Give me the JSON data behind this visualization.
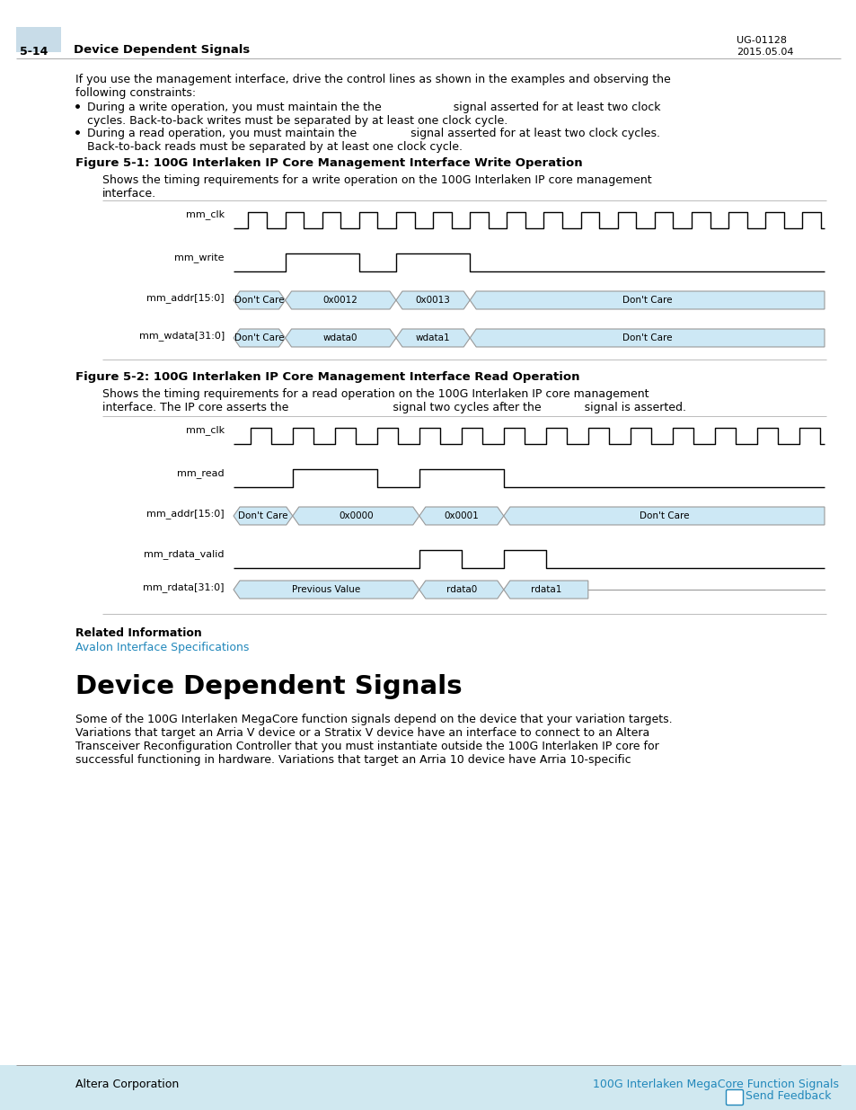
{
  "page_bg": "#ffffff",
  "header_bg": "#c8dce8",
  "header_label": "5-14",
  "header_title": "Device Dependent Signals",
  "header_right1": "UG-01128",
  "header_right2": "2015.05.04",
  "body_text1_l1": "If you use the management interface, drive the control lines as shown in the examples and observing the",
  "body_text1_l2": "following constraints:",
  "bullet1_l1": "During a write operation, you must maintain the the                    signal asserted for at least two clock",
  "bullet1_l2": "cycles. Back-to-back writes must be separated by at least one clock cycle.",
  "bullet2_l1": "During a read operation, you must maintain the               signal asserted for at least two clock cycles.",
  "bullet2_l2": "Back-to-back reads must be separated by at least one clock cycle.",
  "fig1_title": "Figure 5-1: 100G Interlaken IP Core Management Interface Write Operation",
  "fig1_cap_l1": "Shows the timing requirements for a write operation on the 100G Interlaken IP core management",
  "fig1_cap_l2": "interface.",
  "fig2_title": "Figure 5-2: 100G Interlaken IP Core Management Interface Read Operation",
  "fig2_cap_l1": "Shows the timing requirements for a read operation on the 100G Interlaken IP core management",
  "fig2_cap_l2": "interface. The IP core asserts the                             signal two cycles after the            signal is asserted.",
  "related_info_label": "Related Information",
  "related_link": "Avalon Interface Specifications",
  "section_title": "Device Dependent Signals",
  "section_body_l1": "Some of the 100G Interlaken MegaCore function signals depend on the device that your variation targets.",
  "section_body_l2": "Variations that target an Arria V device or a Stratix V device have an interface to connect to an Altera",
  "section_body_l3": "Transceiver Reconfiguration Controller that you must instantiate outside the 100G Interlaken IP core for",
  "section_body_l4": "successful functioning in hardware. Variations that target an Arria 10 device have Arria 10-specific",
  "footer_left": "Altera Corporation",
  "footer_right": "100G Interlaken MegaCore Function Signals",
  "footer_link": "Send Feedback",
  "signal_fill": "#cde8f5",
  "signal_border": "#999999",
  "waveform_color": "#000000",
  "divider_color": "#cccccc",
  "link_color": "#2288bb",
  "footer_bar_color": "#d0e8f0"
}
